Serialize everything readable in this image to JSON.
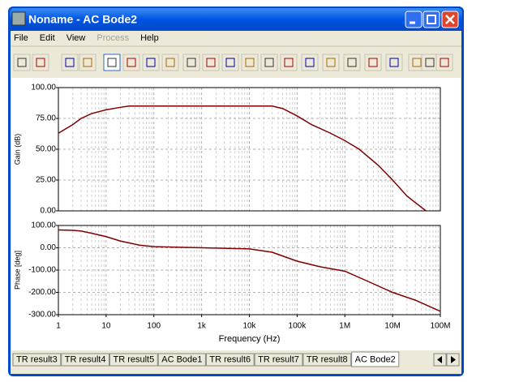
{
  "window": {
    "title": "Noname - AC Bode2"
  },
  "menu": [
    "File",
    "Edit",
    "View",
    "Process",
    "Help"
  ],
  "chart_data": [
    {
      "type": "line",
      "ylabel": "Gain (dB)",
      "x": [
        1,
        2,
        3,
        5,
        10,
        20,
        30,
        100,
        1000,
        10000,
        30000,
        50000,
        100000,
        200000,
        500000,
        1000000,
        2000000,
        5000000,
        10000000,
        20000000,
        50000000
      ],
      "series": [
        {
          "color": "#800000",
          "values": [
            63,
            70,
            75,
            79,
            82,
            84,
            85,
            85,
            85,
            85,
            85,
            83,
            77,
            70,
            63,
            57,
            50,
            37,
            25,
            12,
            0
          ]
        }
      ],
      "xlim": [
        1,
        100000000
      ],
      "log_x": true,
      "ylim": [
        0,
        100
      ],
      "yticks": [
        {
          "value": 0,
          "label": "0.00"
        },
        {
          "value": 25,
          "label": "25.00"
        },
        {
          "value": 50,
          "label": "50.00"
        },
        {
          "value": 75,
          "label": "75.00"
        },
        {
          "value": 100,
          "label": "100.00"
        }
      ],
      "grid": true
    },
    {
      "type": "line",
      "ylabel": "Phase [deg]",
      "xlabel": "Frequency (Hz)",
      "x": [
        1,
        2,
        3,
        5,
        10,
        20,
        50,
        100,
        1000,
        10000,
        30000,
        100000,
        300000,
        1000000,
        3000000,
        10000000,
        30000000,
        100000000
      ],
      "series": [
        {
          "color": "#800000",
          "values": [
            80,
            78,
            75,
            65,
            50,
            30,
            12,
            5,
            0,
            -5,
            -20,
            -60,
            -85,
            -105,
            -150,
            -200,
            -235,
            -285
          ]
        }
      ],
      "xlim": [
        1,
        100000000
      ],
      "log_x": true,
      "xticks": [
        1,
        10,
        100,
        {
          "value": 1000,
          "label": "1k"
        },
        {
          "value": 10000,
          "label": "10k"
        },
        {
          "value": 100000,
          "label": "100k"
        },
        {
          "value": 1000000,
          "label": "1M"
        },
        {
          "value": 10000000,
          "label": "10M"
        },
        {
          "value": 100000000,
          "label": "100M"
        }
      ],
      "ylim": [
        -300,
        100
      ],
      "yticks": [
        {
          "value": -300,
          "label": "-300.00"
        },
        {
          "value": -200,
          "label": "-200.00"
        },
        {
          "value": -100,
          "label": "-100.00"
        },
        {
          "value": 0,
          "label": "0.00"
        },
        {
          "value": 100,
          "label": "100.00"
        }
      ],
      "grid": true
    }
  ],
  "tabs": [
    "TR result3",
    "TR result4",
    "TR result5",
    "AC Bode1",
    "TR result6",
    "TR result7",
    "TR result8",
    "AC Bode2"
  ],
  "active_tab": 7
}
